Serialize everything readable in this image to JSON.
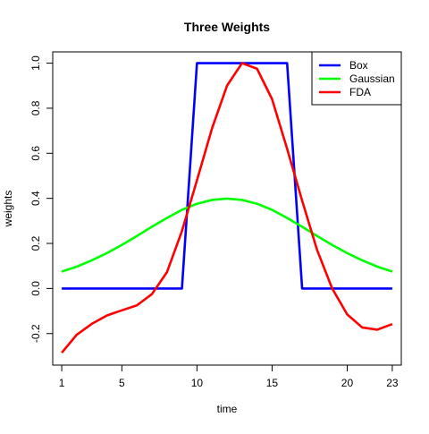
{
  "chart_data": {
    "type": "line",
    "title": "Three Weights",
    "xlabel": "time",
    "ylabel": "weights",
    "xlim": [
      0.4,
      23.6
    ],
    "ylim": [
      -0.34,
      1.05
    ],
    "x_ticks": [
      1,
      5,
      10,
      15,
      20,
      23
    ],
    "y_ticks": [
      -0.2,
      0.0,
      0.2,
      0.4,
      0.6,
      0.8,
      1.0
    ],
    "y_tick_labels": [
      "-0.2",
      "0.0",
      "0.2",
      "0.4",
      "0.6",
      "0.8",
      "1.0"
    ],
    "legend_position": "top-right",
    "x": [
      1,
      2,
      3,
      4,
      5,
      6,
      7,
      8,
      9,
      10,
      11,
      12,
      13,
      14,
      15,
      16,
      17,
      18,
      19,
      20,
      21,
      22,
      23
    ],
    "series": [
      {
        "name": "Box",
        "color": "#0000ff",
        "values": [
          0,
          0,
          0,
          0,
          0,
          0,
          0,
          0,
          0,
          1,
          1,
          1,
          1,
          1,
          1,
          1,
          0,
          0,
          0,
          0,
          0,
          0,
          0
        ]
      },
      {
        "name": "Gaussian",
        "color": "#00ff00",
        "values": [
          0.075,
          0.097,
          0.125,
          0.157,
          0.193,
          0.233,
          0.274,
          0.313,
          0.349,
          0.376,
          0.393,
          0.399,
          0.393,
          0.376,
          0.349,
          0.313,
          0.274,
          0.233,
          0.193,
          0.157,
          0.125,
          0.097,
          0.075
        ]
      },
      {
        "name": "FDA",
        "color": "#ff0000",
        "values": [
          -0.285,
          -0.205,
          -0.157,
          -0.12,
          -0.097,
          -0.075,
          -0.025,
          0.072,
          0.255,
          0.48,
          0.71,
          0.9,
          1.0,
          0.975,
          0.84,
          0.62,
          0.39,
          0.17,
          0.0,
          -0.115,
          -0.173,
          -0.183,
          -0.158
        ]
      }
    ]
  }
}
